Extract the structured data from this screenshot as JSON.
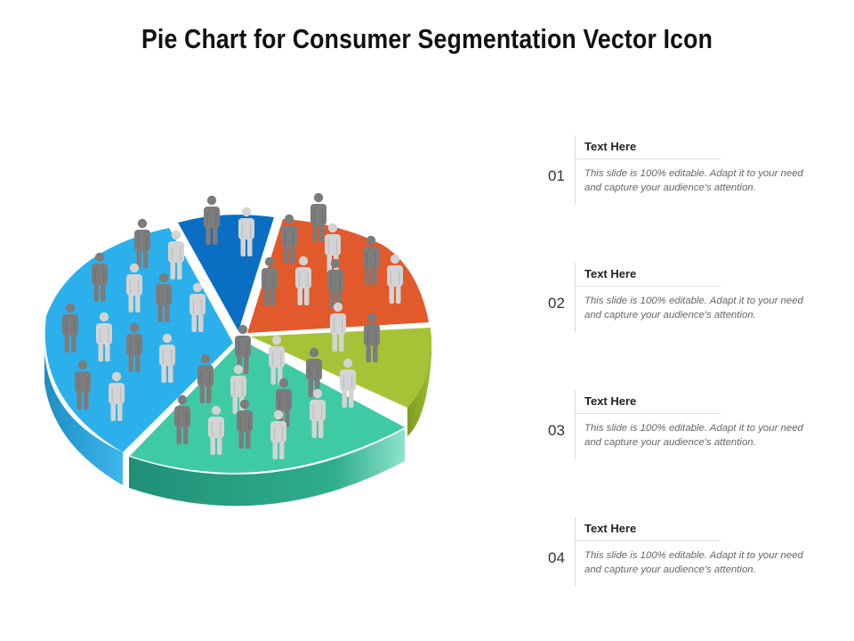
{
  "title": "Pie Chart for Consumer Segmentation Vector Icon",
  "colors": {
    "blue_light": "#2bb0ec",
    "blue_dark": "#0a6fc2",
    "orange": "#e2592b",
    "lime": "#a6c338",
    "teal": "#3fcaa6",
    "person_dark": "#7c7c7c",
    "person_light": "#d3d3d3"
  },
  "items": [
    {
      "number": "01",
      "heading": "Text Here",
      "text": "This slide is 100% editable. Adapt it to your need and capture your audience's attention."
    },
    {
      "number": "02",
      "heading": "Text Here",
      "text": "This slide is 100% editable. Adapt it to your need and capture your audience's attention."
    },
    {
      "number": "03",
      "heading": "Text Here",
      "text": "This slide is 100% editable. Adapt it to your need and capture your audience's attention."
    },
    {
      "number": "04",
      "heading": "Text Here",
      "text": "This slide is 100% editable. Adapt it to your need and capture your audience's attention."
    }
  ]
}
